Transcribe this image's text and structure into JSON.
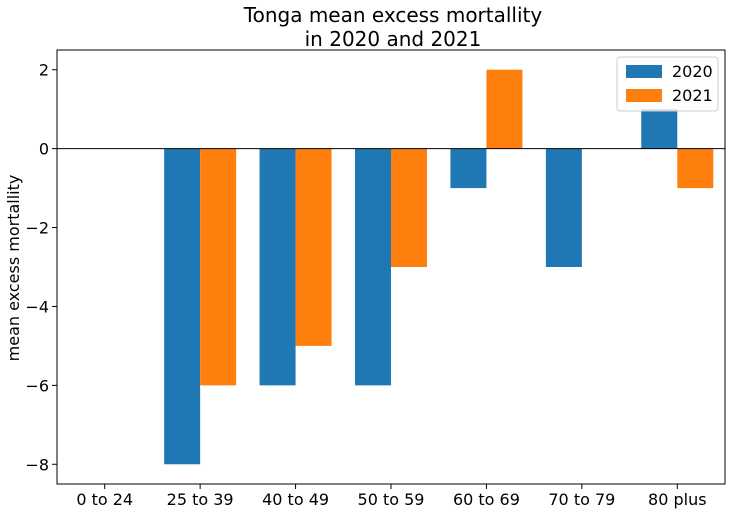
{
  "chart_data": {
    "type": "bar",
    "title": [
      "Tonga mean excess mortallity",
      "in 2020 and 2021"
    ],
    "xlabel": "",
    "ylabel": "mean excess mortallity",
    "categories": [
      "0 to 24",
      "25 to 39",
      "40 to 49",
      "50 to 59",
      "60 to 69",
      "70 to 79",
      "80 plus"
    ],
    "series": [
      {
        "name": "2020",
        "color": "#1f77b4",
        "values": [
          0,
          -8,
          -6,
          -6,
          -1,
          -3,
          1
        ]
      },
      {
        "name": "2021",
        "color": "#ff7f0e",
        "values": [
          0,
          -6,
          -5,
          -3,
          2,
          0,
          -1
        ]
      }
    ],
    "ylim": [
      -8.5,
      2.5
    ],
    "yticks": [
      2,
      0,
      -2,
      -4,
      -6,
      -8
    ],
    "ytick_labels": [
      "2",
      "0",
      "−2",
      "−4",
      "−6",
      "−8"
    ],
    "zero_line": true,
    "grid": false,
    "legend": "top-right"
  }
}
